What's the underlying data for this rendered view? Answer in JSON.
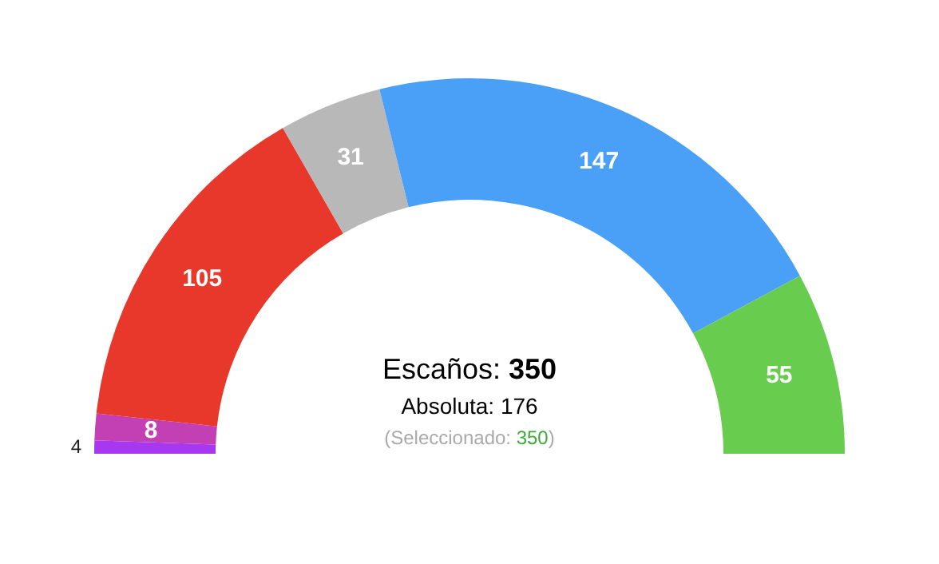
{
  "chart_data": {
    "type": "donut",
    "categories": [
      null,
      null,
      null,
      null,
      null,
      null
    ],
    "values": [
      4,
      8,
      105,
      31,
      147,
      55
    ],
    "colors": [
      "#a837f2",
      "#c23fb4",
      "#e8382b",
      "#b8b8b8",
      "#4aa0f6",
      "#68cc4e"
    ],
    "data_labels": true,
    "annotations": [
      "Escaños: 350",
      "Absoluta: 176",
      "(Seleccionado: 350)"
    ]
  }
}
